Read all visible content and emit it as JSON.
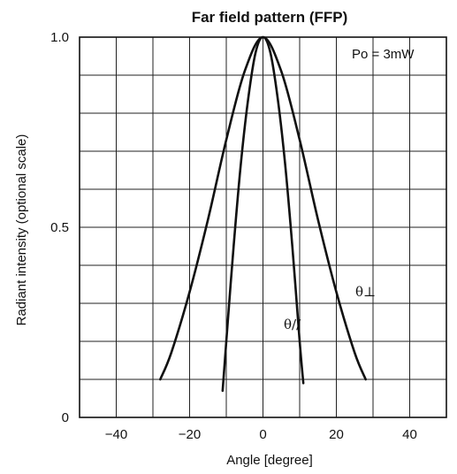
{
  "chart_data": {
    "type": "line",
    "title": "Far field pattern (FFP)",
    "xlabel": "Angle [degree]",
    "ylabel": "Radiant intensity (optional scale)",
    "xlim": [
      -50,
      50
    ],
    "ylim": [
      0,
      1.0
    ],
    "x_ticks": [
      -40,
      -20,
      0,
      20,
      40
    ],
    "x_tick_labels": [
      "−40",
      "−20",
      "0",
      "20",
      "40"
    ],
    "y_ticks": [
      0,
      0.5,
      1.0
    ],
    "y_tick_labels": [
      "0",
      "0.5",
      "1.0"
    ],
    "grid": true,
    "annotation": "Po = 3mW",
    "series": [
      {
        "name": "θ⊥",
        "x": [
          -28,
          -25,
          -20,
          -15,
          -10,
          -5,
          0,
          5,
          10,
          15,
          20,
          25,
          28
        ],
        "y": [
          0.1,
          0.17,
          0.33,
          0.52,
          0.73,
          0.91,
          1.0,
          0.91,
          0.73,
          0.52,
          0.33,
          0.17,
          0.1
        ]
      },
      {
        "name": "θ//",
        "x": [
          -11,
          -10,
          -8,
          -6,
          -4,
          -2,
          0,
          2,
          4,
          6,
          8,
          10,
          11
        ],
        "y": [
          0.07,
          0.2,
          0.45,
          0.67,
          0.84,
          0.96,
          1.0,
          0.96,
          0.84,
          0.67,
          0.45,
          0.2,
          0.09
        ]
      }
    ]
  }
}
